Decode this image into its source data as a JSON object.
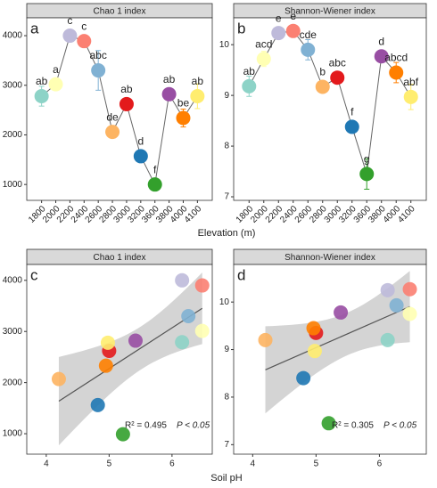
{
  "chart_data": [
    {
      "type": "line",
      "panel": "a",
      "title": "Chao 1 index",
      "categories": [
        "1800",
        "2000",
        "2200",
        "2400",
        "2600",
        "2800",
        "3000",
        "3200",
        "3600",
        "3800",
        "4000",
        "4100"
      ],
      "values": [
        2780,
        3020,
        4000,
        3890,
        3300,
        2060,
        2620,
        1570,
        1000,
        2820,
        2340,
        2780
      ],
      "errors": [
        200,
        100,
        50,
        50,
        400,
        60,
        60,
        80,
        80,
        80,
        180,
        250
      ],
      "letters": [
        "ab",
        "a",
        "c",
        "c",
        "abc",
        "de",
        "ab",
        "d",
        "f",
        "ab",
        "be",
        "ab"
      ],
      "colors": [
        "#8dd3c7",
        "#ffffb3",
        "#bebada",
        "#fb8072",
        "#80b1d3",
        "#fdb462",
        "#e31a1c",
        "#1f78b4",
        "#33a02c",
        "#984ea3",
        "#ff7f00",
        "#ffed6f"
      ],
      "ylim": [
        680,
        4360
      ],
      "yticks": [
        1000,
        2000,
        3000,
        4000
      ],
      "xlabel": "Elevation (m)"
    },
    {
      "type": "line",
      "panel": "b",
      "title": "Shannon-Wiener index",
      "categories": [
        "1800",
        "2000",
        "2200",
        "2400",
        "2600",
        "2800",
        "3000",
        "3200",
        "3600",
        "3800",
        "4000",
        "4100"
      ],
      "values": [
        9.18,
        9.72,
        10.23,
        10.27,
        9.9,
        9.17,
        9.35,
        8.38,
        7.45,
        9.77,
        9.45,
        8.97
      ],
      "errors": [
        0.2,
        0.15,
        0.05,
        0.05,
        0.2,
        0.1,
        0.1,
        0.1,
        0.3,
        0.1,
        0.2,
        0.25
      ],
      "letters": [
        "ab",
        "acd",
        "e",
        "e",
        "cde",
        "b",
        "abc",
        "f",
        "g",
        "d",
        "abcd",
        "abf"
      ],
      "colors": [
        "#8dd3c7",
        "#ffffb3",
        "#bebada",
        "#fb8072",
        "#80b1d3",
        "#fdb462",
        "#e31a1c",
        "#1f78b4",
        "#33a02c",
        "#984ea3",
        "#ff7f00",
        "#ffed6f"
      ],
      "ylim": [
        6.93,
        10.53
      ],
      "yticks": [
        7,
        8,
        9,
        10
      ]
    },
    {
      "type": "scatter",
      "panel": "c",
      "title": "Chao 1 index",
      "x": [
        6.16,
        6.48,
        6.16,
        6.48,
        6.26,
        4.2,
        5.0,
        4.82,
        5.22,
        5.42,
        4.95,
        4.98
      ],
      "values": [
        2790,
        3010,
        4000,
        3900,
        3300,
        2070,
        2620,
        1560,
        990,
        2820,
        2330,
        2780
      ],
      "colors": [
        "#8dd3c7",
        "#ffffb3",
        "#bebada",
        "#fb8072",
        "#80b1d3",
        "#fdb462",
        "#e31a1c",
        "#1f78b4",
        "#33a02c",
        "#984ea3",
        "#ff7f00",
        "#ffed6f"
      ],
      "xlim": [
        3.69,
        6.64
      ],
      "xticks": [
        4,
        5,
        6
      ],
      "ylim": [
        600,
        4310
      ],
      "yticks": [
        1000,
        2000,
        3000,
        4000
      ],
      "stat": "R² = 0.495",
      "p": "P < 0.05",
      "xlabel": "Soil pH"
    },
    {
      "type": "scatter",
      "panel": "d",
      "title": "Shannon-Wiener index",
      "x": [
        6.13,
        6.48,
        6.13,
        6.48,
        6.27,
        4.2,
        5.0,
        4.8,
        5.2,
        5.39,
        4.96,
        4.98
      ],
      "values": [
        9.2,
        9.75,
        10.25,
        10.27,
        9.93,
        9.2,
        9.35,
        8.4,
        7.45,
        9.78,
        9.45,
        8.97
      ],
      "colors": [
        "#8dd3c7",
        "#ffffb3",
        "#bebada",
        "#fb8072",
        "#80b1d3",
        "#fdb462",
        "#e31a1c",
        "#1f78b4",
        "#33a02c",
        "#984ea3",
        "#ff7f00",
        "#ffed6f"
      ],
      "xlim": [
        3.7,
        6.74
      ],
      "xticks": [
        4,
        5,
        6
      ],
      "ylim": [
        6.8,
        10.79
      ],
      "yticks": [
        7,
        8,
        9,
        10
      ],
      "stat": "R² = 0.305",
      "p": "P < 0.05"
    }
  ]
}
